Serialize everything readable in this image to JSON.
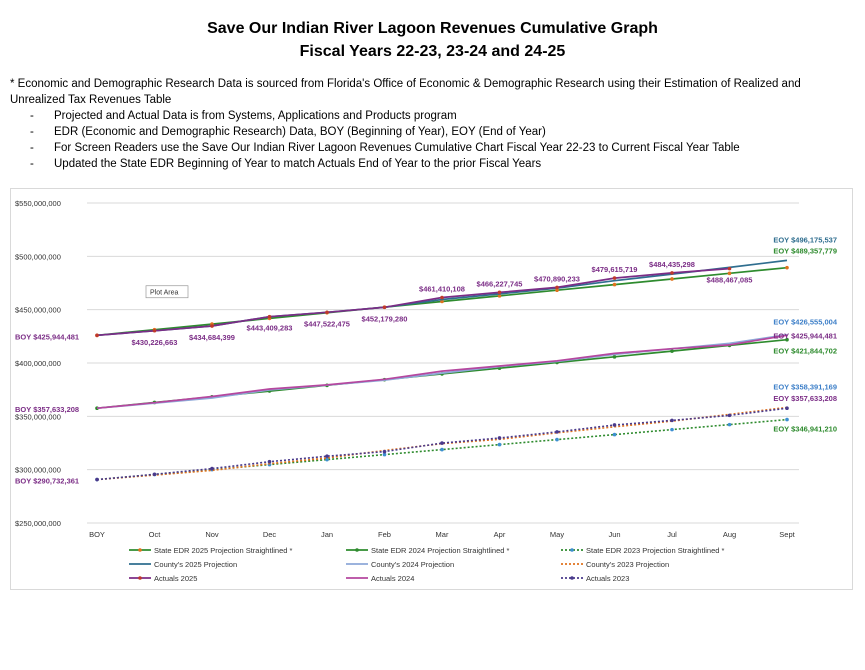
{
  "header": {
    "title_line1": "Save Our Indian River Lagoon Revenues Cumulative Graph",
    "title_line2": "Fiscal Years 22-23, 23-24 and 24-25"
  },
  "notes": {
    "intro": "* Economic and Demographic Research Data is sourced from Florida's Office of Economic & Demographic Research using their Estimation of Realized and Unrealized Tax Revenues Table",
    "items": [
      "Projected and Actual Data is from Systems, Applications and Products program",
      "EDR (Economic and Demographic Research) Data, BOY (Beginning of Year), EOY (End of Year)",
      "For Screen Readers use the Save Our Indian River Lagoon Revenues Cumulative Chart Fiscal Year 22-23 to Current Fiscal Year Table",
      "Updated the State EDR Beginning of Year to match Actuals End of Year to the prior Fiscal Years"
    ]
  },
  "chart_data": {
    "type": "line",
    "categories": [
      "BOY",
      "Oct",
      "Nov",
      "Dec",
      "Jan",
      "Feb",
      "Mar",
      "Apr",
      "May",
      "Jun",
      "Jul",
      "Aug",
      "Sept"
    ],
    "ylim": [
      250000000,
      550000000
    ],
    "yticks": [
      250000000,
      300000000,
      350000000,
      400000000,
      450000000,
      500000000,
      550000000
    ],
    "ytick_labels": [
      "$250,000,000",
      "$300,000,000",
      "$350,000,000",
      "$400,000,000",
      "$450,000,000",
      "$500,000,000",
      "$550,000,000"
    ],
    "grid": true,
    "tooltip": "Plot Area",
    "legend_position": "bottom",
    "series": [
      {
        "name": "State EDR 2025 Projection Straightlined *",
        "color": "#2e8b2e",
        "dash": "solid",
        "marker": "#e0731e",
        "values": [
          425944481,
          431228000,
          436511000,
          441795000,
          447078000,
          452361000,
          457645000,
          462928000,
          468211000,
          473495000,
          478778000,
          484062000,
          489357779
        ]
      },
      {
        "name": "State EDR 2024 Projection Straightlined *",
        "color": "#2e8b2e",
        "dash": "solid",
        "marker": "#2e8b2e",
        "values": [
          357633208,
          363000000,
          368350000,
          373700000,
          379050000,
          384400000,
          389750000,
          395100000,
          400450000,
          405800000,
          411150000,
          416500000,
          421844702
        ]
      },
      {
        "name": "State EDR 2023 Projection Straightlined *",
        "color": "#2e8b2e",
        "dash": "dotted",
        "marker": "#3d8fd1",
        "values": [
          290732361,
          295414000,
          300096000,
          304777000,
          309459000,
          314141000,
          318823000,
          323505000,
          328187000,
          332869000,
          337550000,
          342232000,
          346941210
        ]
      },
      {
        "name": "County's 2025 Projection",
        "color": "#2f6e8f",
        "dash": "solid",
        "marker": null,
        "values": [
          425944481,
          430226663,
          434684399,
          443409283,
          447522475,
          452179280,
          459500000,
          464800000,
          470100000,
          477200000,
          483300000,
          489600000,
          496175537
        ]
      },
      {
        "name": "County's 2024 Projection",
        "color": "#8ea8d8",
        "dash": "solid",
        "marker": null,
        "values": [
          357633208,
          362300000,
          367200000,
          374800000,
          379200000,
          383900000,
          390500000,
          396700000,
          401500000,
          408100000,
          413300000,
          418400000,
          426555004
        ]
      },
      {
        "name": "County's 2023 Projection",
        "color": "#e0731e",
        "dash": "dotted",
        "marker": null,
        "values": [
          290732361,
          294900000,
          299300000,
          305600000,
          310900000,
          318000000,
          324400000,
          328500000,
          334600000,
          340200000,
          345500000,
          351800000,
          358391169
        ]
      },
      {
        "name": "Actuals 2025",
        "color": "#7b2d86",
        "dash": "solid",
        "marker": "#c0392b",
        "values": [
          425944481,
          430226663,
          434684399,
          443409283,
          447522475,
          452179280,
          461410108,
          466227745,
          470890233,
          479615719,
          484435298,
          488467085,
          null
        ]
      },
      {
        "name": "Actuals 2024",
        "color": "#b5479f",
        "dash": "solid",
        "marker": null,
        "values": [
          357633208,
          362800000,
          368600000,
          375600000,
          379500000,
          384700000,
          392400000,
          397200000,
          402100000,
          409000000,
          413400000,
          417000000,
          425944481
        ]
      },
      {
        "name": "Actuals 2023",
        "color": "#4a3a8c",
        "dash": "dotted",
        "marker": "#4a3a8c",
        "values": [
          290732361,
          295700000,
          301000000,
          307500000,
          312600000,
          316900000,
          324900000,
          329700000,
          335400000,
          341900000,
          346200000,
          350900000,
          357633208
        ]
      }
    ],
    "annotations": [
      {
        "text": "BOY $425,944,481",
        "cat": 0,
        "value": 425944481,
        "color": "#7b2d86",
        "pos": "left"
      },
      {
        "text": "$430,226,663",
        "cat": 1,
        "value": 430226663,
        "color": "#7b2d86",
        "pos": "below"
      },
      {
        "text": "$434,684,399",
        "cat": 2,
        "value": 434684399,
        "color": "#7b2d86",
        "pos": "below"
      },
      {
        "text": "$443,409,283",
        "cat": 3,
        "value": 443409283,
        "color": "#7b2d86",
        "pos": "below"
      },
      {
        "text": "$447,522,475",
        "cat": 4,
        "value": 447522475,
        "color": "#7b2d86",
        "pos": "below"
      },
      {
        "text": "$452,179,280",
        "cat": 5,
        "value": 452179280,
        "color": "#7b2d86",
        "pos": "below"
      },
      {
        "text": "$461,410,108",
        "cat": 6,
        "value": 461410108,
        "color": "#7b2d86",
        "pos": "above"
      },
      {
        "text": "$466,227,745",
        "cat": 7,
        "value": 466227745,
        "color": "#7b2d86",
        "pos": "above"
      },
      {
        "text": "$470,890,233",
        "cat": 8,
        "value": 470890233,
        "color": "#7b2d86",
        "pos": "above"
      },
      {
        "text": "$479,615,719",
        "cat": 9,
        "value": 479615719,
        "color": "#7b2d86",
        "pos": "above"
      },
      {
        "text": "$484,435,298",
        "cat": 10,
        "value": 484435298,
        "color": "#7b2d86",
        "pos": "above"
      },
      {
        "text": "$488,467,085",
        "cat": 11,
        "value": 488467085,
        "color": "#7b2d86",
        "pos": "below"
      },
      {
        "text": "EOY $496,175,537",
        "cat": 12,
        "value": 496175537,
        "color": "#2f6e8f",
        "pos": "eoy",
        "dy": -18
      },
      {
        "text": "EOY $489,357,779",
        "cat": 12,
        "value": 489357779,
        "color": "#2e8b2e",
        "pos": "eoy",
        "dy": -14
      },
      {
        "text": "BOY $357,633,208",
        "cat": 0,
        "value": 357633208,
        "color": "#7b2d86",
        "pos": "left"
      },
      {
        "text": "EOY $426,555,004",
        "cat": 12,
        "value": 426555004,
        "color": "#3d7fc8",
        "pos": "eoy",
        "dy": -10
      },
      {
        "text": "EOY $425,944,481",
        "cat": 12,
        "value": 425944481,
        "color": "#7b2d86",
        "pos": "eoy",
        "dy": 3
      },
      {
        "text": "EOY $421,844,702",
        "cat": 12,
        "value": 421844702,
        "color": "#2e8b2e",
        "pos": "eoy",
        "dy": 14
      },
      {
        "text": "BOY $290,732,361",
        "cat": 0,
        "value": 290732361,
        "color": "#7b2d86",
        "pos": "left"
      },
      {
        "text": "EOY $358,391,169",
        "cat": 12,
        "value": 358391169,
        "color": "#3d7fc8",
        "pos": "eoy",
        "dy": -18
      },
      {
        "text": "EOY $357,633,208",
        "cat": 12,
        "value": 357633208,
        "color": "#7b2d86",
        "pos": "eoy",
        "dy": -7
      },
      {
        "text": "EOY $346,941,210",
        "cat": 12,
        "value": 346941210,
        "color": "#2e8b2e",
        "pos": "eoy",
        "dy": 12
      }
    ]
  }
}
